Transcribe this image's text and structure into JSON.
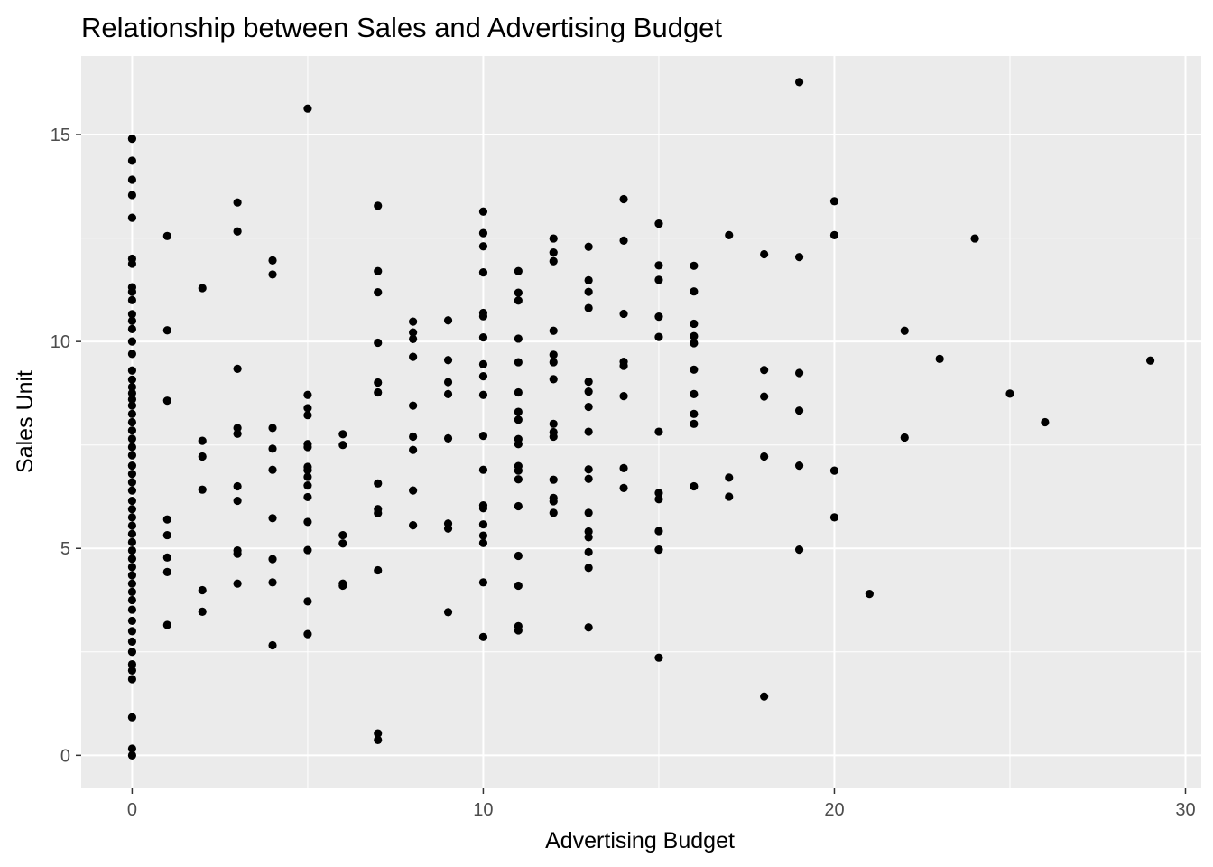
{
  "chart_data": {
    "type": "scatter",
    "title": "Relationship between Sales and Advertising Budget",
    "xlabel": "Advertising Budget",
    "ylabel": "Sales Unit",
    "xlim": [
      -1.45,
      30.45
    ],
    "ylim": [
      -0.8,
      16.9
    ],
    "x_ticks": [
      0,
      10,
      20,
      30
    ],
    "y_ticks": [
      0,
      5,
      10,
      15
    ],
    "x_tick_labels": [
      "0",
      "10",
      "20",
      "30"
    ],
    "y_tick_labels": [
      "0",
      "5",
      "10",
      "15"
    ],
    "grid": true,
    "legend": "none",
    "colors": {
      "panel": "#ebebeb",
      "grid": "#ffffff",
      "point": "#000000",
      "tick": "#333333"
    },
    "points": [
      {
        "x": 0,
        "y": 14.9
      },
      {
        "x": 0,
        "y": 14.37
      },
      {
        "x": 0,
        "y": 13.91
      },
      {
        "x": 0,
        "y": 13.54
      },
      {
        "x": 0,
        "y": 12.99
      },
      {
        "x": 0,
        "y": 12.0
      },
      {
        "x": 0,
        "y": 11.88
      },
      {
        "x": 0,
        "y": 11.31
      },
      {
        "x": 0,
        "y": 11.2
      },
      {
        "x": 0,
        "y": 11.0
      },
      {
        "x": 0,
        "y": 10.66
      },
      {
        "x": 0,
        "y": 10.5
      },
      {
        "x": 0,
        "y": 10.3
      },
      {
        "x": 0,
        "y": 10.0
      },
      {
        "x": 0,
        "y": 9.7
      },
      {
        "x": 0,
        "y": 9.3
      },
      {
        "x": 0,
        "y": 9.08
      },
      {
        "x": 0,
        "y": 8.9
      },
      {
        "x": 0,
        "y": 8.75
      },
      {
        "x": 0,
        "y": 8.6
      },
      {
        "x": 0,
        "y": 8.45
      },
      {
        "x": 0,
        "y": 8.25
      },
      {
        "x": 0,
        "y": 8.05
      },
      {
        "x": 0,
        "y": 7.85
      },
      {
        "x": 0,
        "y": 7.65
      },
      {
        "x": 0,
        "y": 7.45
      },
      {
        "x": 0,
        "y": 7.25
      },
      {
        "x": 0,
        "y": 7.0
      },
      {
        "x": 0,
        "y": 6.8
      },
      {
        "x": 0,
        "y": 6.6
      },
      {
        "x": 0,
        "y": 6.4
      },
      {
        "x": 0,
        "y": 6.15
      },
      {
        "x": 0,
        "y": 5.95
      },
      {
        "x": 0,
        "y": 5.75
      },
      {
        "x": 0,
        "y": 5.55
      },
      {
        "x": 0,
        "y": 5.35
      },
      {
        "x": 0,
        "y": 5.15
      },
      {
        "x": 0,
        "y": 4.95
      },
      {
        "x": 0,
        "y": 4.75
      },
      {
        "x": 0,
        "y": 4.55
      },
      {
        "x": 0,
        "y": 4.35
      },
      {
        "x": 0,
        "y": 4.15
      },
      {
        "x": 0,
        "y": 3.95
      },
      {
        "x": 0,
        "y": 3.75
      },
      {
        "x": 0,
        "y": 3.52
      },
      {
        "x": 0,
        "y": 3.25
      },
      {
        "x": 0,
        "y": 3.0
      },
      {
        "x": 0,
        "y": 2.75
      },
      {
        "x": 0,
        "y": 2.5
      },
      {
        "x": 0,
        "y": 2.2
      },
      {
        "x": 0,
        "y": 2.05
      },
      {
        "x": 0,
        "y": 1.84
      },
      {
        "x": 0,
        "y": 0.92
      },
      {
        "x": 0,
        "y": 0.16
      },
      {
        "x": 0,
        "y": 0.0
      },
      {
        "x": 1,
        "y": 12.55
      },
      {
        "x": 1,
        "y": 10.27
      },
      {
        "x": 1,
        "y": 8.57
      },
      {
        "x": 1,
        "y": 5.7
      },
      {
        "x": 1,
        "y": 5.32
      },
      {
        "x": 1,
        "y": 4.78
      },
      {
        "x": 1,
        "y": 4.43
      },
      {
        "x": 1,
        "y": 3.15
      },
      {
        "x": 2,
        "y": 11.29
      },
      {
        "x": 2,
        "y": 7.6
      },
      {
        "x": 2,
        "y": 7.22
      },
      {
        "x": 2,
        "y": 6.42
      },
      {
        "x": 2,
        "y": 3.99
      },
      {
        "x": 2,
        "y": 3.47
      },
      {
        "x": 3,
        "y": 13.36
      },
      {
        "x": 3,
        "y": 12.66
      },
      {
        "x": 3,
        "y": 9.34
      },
      {
        "x": 3,
        "y": 7.91
      },
      {
        "x": 3,
        "y": 7.77
      },
      {
        "x": 3,
        "y": 6.5
      },
      {
        "x": 3,
        "y": 6.15
      },
      {
        "x": 3,
        "y": 4.95
      },
      {
        "x": 3,
        "y": 4.87
      },
      {
        "x": 3,
        "y": 4.15
      },
      {
        "x": 4,
        "y": 11.96
      },
      {
        "x": 4,
        "y": 11.62
      },
      {
        "x": 4,
        "y": 7.91
      },
      {
        "x": 4,
        "y": 7.41
      },
      {
        "x": 4,
        "y": 6.9
      },
      {
        "x": 4,
        "y": 5.73
      },
      {
        "x": 4,
        "y": 4.74
      },
      {
        "x": 4,
        "y": 4.18
      },
      {
        "x": 4,
        "y": 2.66
      },
      {
        "x": 5,
        "y": 15.63
      },
      {
        "x": 5,
        "y": 8.71
      },
      {
        "x": 5,
        "y": 8.39
      },
      {
        "x": 5,
        "y": 8.22
      },
      {
        "x": 5,
        "y": 7.52
      },
      {
        "x": 5,
        "y": 7.45
      },
      {
        "x": 5,
        "y": 6.97
      },
      {
        "x": 5,
        "y": 6.89
      },
      {
        "x": 5,
        "y": 6.73
      },
      {
        "x": 5,
        "y": 6.52
      },
      {
        "x": 5,
        "y": 6.24
      },
      {
        "x": 5,
        "y": 5.64
      },
      {
        "x": 5,
        "y": 4.96
      },
      {
        "x": 5,
        "y": 3.72
      },
      {
        "x": 5,
        "y": 2.93
      },
      {
        "x": 6,
        "y": 7.76
      },
      {
        "x": 6,
        "y": 7.5
      },
      {
        "x": 6,
        "y": 5.32
      },
      {
        "x": 6,
        "y": 5.12
      },
      {
        "x": 6,
        "y": 4.15
      },
      {
        "x": 6,
        "y": 4.1
      },
      {
        "x": 7,
        "y": 13.28
      },
      {
        "x": 7,
        "y": 11.7
      },
      {
        "x": 7,
        "y": 11.19
      },
      {
        "x": 7,
        "y": 9.97
      },
      {
        "x": 7,
        "y": 9.01
      },
      {
        "x": 7,
        "y": 8.77
      },
      {
        "x": 7,
        "y": 6.57
      },
      {
        "x": 7,
        "y": 5.95
      },
      {
        "x": 7,
        "y": 5.85
      },
      {
        "x": 7,
        "y": 4.47
      },
      {
        "x": 7,
        "y": 0.53
      },
      {
        "x": 7,
        "y": 0.37
      },
      {
        "x": 8,
        "y": 10.48
      },
      {
        "x": 8,
        "y": 10.22
      },
      {
        "x": 8,
        "y": 10.06
      },
      {
        "x": 8,
        "y": 9.63
      },
      {
        "x": 8,
        "y": 8.45
      },
      {
        "x": 8,
        "y": 7.7
      },
      {
        "x": 8,
        "y": 7.38
      },
      {
        "x": 8,
        "y": 6.4
      },
      {
        "x": 8,
        "y": 5.56
      },
      {
        "x": 9,
        "y": 10.51
      },
      {
        "x": 9,
        "y": 9.55
      },
      {
        "x": 9,
        "y": 9.02
      },
      {
        "x": 9,
        "y": 8.73
      },
      {
        "x": 9,
        "y": 7.66
      },
      {
        "x": 9,
        "y": 5.6
      },
      {
        "x": 9,
        "y": 5.48
      },
      {
        "x": 9,
        "y": 3.46
      },
      {
        "x": 10,
        "y": 13.14
      },
      {
        "x": 10,
        "y": 12.62
      },
      {
        "x": 10,
        "y": 12.3
      },
      {
        "x": 10,
        "y": 11.67
      },
      {
        "x": 10,
        "y": 10.69
      },
      {
        "x": 10,
        "y": 10.61
      },
      {
        "x": 10,
        "y": 10.1
      },
      {
        "x": 10,
        "y": 9.45
      },
      {
        "x": 10,
        "y": 9.16
      },
      {
        "x": 10,
        "y": 8.71
      },
      {
        "x": 10,
        "y": 7.72
      },
      {
        "x": 10,
        "y": 6.9
      },
      {
        "x": 10,
        "y": 6.04
      },
      {
        "x": 10,
        "y": 5.97
      },
      {
        "x": 10,
        "y": 5.58
      },
      {
        "x": 10,
        "y": 5.31
      },
      {
        "x": 10,
        "y": 5.13
      },
      {
        "x": 10,
        "y": 4.18
      },
      {
        "x": 10,
        "y": 2.86
      },
      {
        "x": 11,
        "y": 11.7
      },
      {
        "x": 11,
        "y": 11.18
      },
      {
        "x": 11,
        "y": 10.99
      },
      {
        "x": 11,
        "y": 10.07
      },
      {
        "x": 11,
        "y": 9.5
      },
      {
        "x": 11,
        "y": 8.77
      },
      {
        "x": 11,
        "y": 8.3
      },
      {
        "x": 11,
        "y": 8.11
      },
      {
        "x": 11,
        "y": 7.64
      },
      {
        "x": 11,
        "y": 7.52
      },
      {
        "x": 11,
        "y": 6.99
      },
      {
        "x": 11,
        "y": 6.88
      },
      {
        "x": 11,
        "y": 6.67
      },
      {
        "x": 11,
        "y": 6.02
      },
      {
        "x": 11,
        "y": 4.82
      },
      {
        "x": 11,
        "y": 4.1
      },
      {
        "x": 11,
        "y": 3.12
      },
      {
        "x": 11,
        "y": 3.02
      },
      {
        "x": 12,
        "y": 12.49
      },
      {
        "x": 12,
        "y": 12.15
      },
      {
        "x": 12,
        "y": 11.94
      },
      {
        "x": 12,
        "y": 10.26
      },
      {
        "x": 12,
        "y": 9.68
      },
      {
        "x": 12,
        "y": 9.5
      },
      {
        "x": 12,
        "y": 9.09
      },
      {
        "x": 12,
        "y": 8.01
      },
      {
        "x": 12,
        "y": 7.81
      },
      {
        "x": 12,
        "y": 7.7
      },
      {
        "x": 12,
        "y": 6.66
      },
      {
        "x": 12,
        "y": 6.22
      },
      {
        "x": 12,
        "y": 6.14
      },
      {
        "x": 12,
        "y": 5.86
      },
      {
        "x": 13,
        "y": 12.29
      },
      {
        "x": 13,
        "y": 11.48
      },
      {
        "x": 13,
        "y": 11.2
      },
      {
        "x": 13,
        "y": 10.81
      },
      {
        "x": 13,
        "y": 9.03
      },
      {
        "x": 13,
        "y": 8.79
      },
      {
        "x": 13,
        "y": 8.42
      },
      {
        "x": 13,
        "y": 7.82
      },
      {
        "x": 13,
        "y": 6.91
      },
      {
        "x": 13,
        "y": 6.68
      },
      {
        "x": 13,
        "y": 5.86
      },
      {
        "x": 13,
        "y": 5.41
      },
      {
        "x": 13,
        "y": 5.27
      },
      {
        "x": 13,
        "y": 4.91
      },
      {
        "x": 13,
        "y": 4.53
      },
      {
        "x": 13,
        "y": 3.09
      },
      {
        "x": 14,
        "y": 13.44
      },
      {
        "x": 14,
        "y": 12.44
      },
      {
        "x": 14,
        "y": 10.67
      },
      {
        "x": 14,
        "y": 9.51
      },
      {
        "x": 14,
        "y": 9.41
      },
      {
        "x": 14,
        "y": 8.68
      },
      {
        "x": 14,
        "y": 6.94
      },
      {
        "x": 14,
        "y": 6.46
      },
      {
        "x": 15,
        "y": 12.85
      },
      {
        "x": 15,
        "y": 11.84
      },
      {
        "x": 15,
        "y": 11.49
      },
      {
        "x": 15,
        "y": 10.6
      },
      {
        "x": 15,
        "y": 10.11
      },
      {
        "x": 15,
        "y": 7.82
      },
      {
        "x": 15,
        "y": 6.34
      },
      {
        "x": 15,
        "y": 6.19
      },
      {
        "x": 15,
        "y": 5.42
      },
      {
        "x": 15,
        "y": 4.97
      },
      {
        "x": 15,
        "y": 2.36
      },
      {
        "x": 16,
        "y": 11.83
      },
      {
        "x": 16,
        "y": 11.21
      },
      {
        "x": 16,
        "y": 10.43
      },
      {
        "x": 16,
        "y": 10.13
      },
      {
        "x": 16,
        "y": 9.96
      },
      {
        "x": 16,
        "y": 9.32
      },
      {
        "x": 16,
        "y": 8.73
      },
      {
        "x": 16,
        "y": 8.25
      },
      {
        "x": 16,
        "y": 8.01
      },
      {
        "x": 16,
        "y": 6.5
      },
      {
        "x": 17,
        "y": 12.57
      },
      {
        "x": 17,
        "y": 6.71
      },
      {
        "x": 17,
        "y": 6.25
      },
      {
        "x": 18,
        "y": 12.11
      },
      {
        "x": 18,
        "y": 9.31
      },
      {
        "x": 18,
        "y": 8.67
      },
      {
        "x": 18,
        "y": 7.22
      },
      {
        "x": 18,
        "y": 1.42
      },
      {
        "x": 19,
        "y": 16.27
      },
      {
        "x": 19,
        "y": 12.04
      },
      {
        "x": 19,
        "y": 9.24
      },
      {
        "x": 19,
        "y": 8.33
      },
      {
        "x": 19,
        "y": 7.0
      },
      {
        "x": 19,
        "y": 4.97
      },
      {
        "x": 20,
        "y": 13.39
      },
      {
        "x": 20,
        "y": 12.57
      },
      {
        "x": 20,
        "y": 6.88
      },
      {
        "x": 20,
        "y": 5.75
      },
      {
        "x": 21,
        "y": 3.9
      },
      {
        "x": 22,
        "y": 10.26
      },
      {
        "x": 22,
        "y": 7.68
      },
      {
        "x": 23,
        "y": 9.58
      },
      {
        "x": 24,
        "y": 12.49
      },
      {
        "x": 25,
        "y": 8.74
      },
      {
        "x": 26,
        "y": 8.05
      },
      {
        "x": 29,
        "y": 9.54
      }
    ]
  }
}
